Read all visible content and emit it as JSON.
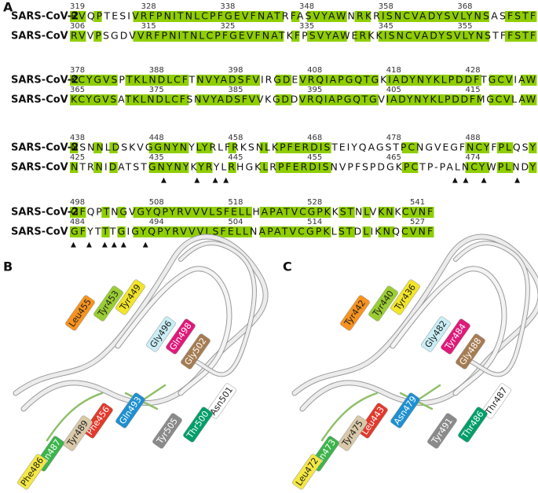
{
  "panels": {
    "a": "A",
    "b": "B",
    "c": "C"
  },
  "alignment": {
    "name1": "SARS-CoV-2",
    "name2": "SARS-CoV",
    "blocks": [
      {
        "numbers1": [
          319,
          328,
          338,
          348,
          358,
          368
        ],
        "seq1": "RVQPTESIVRFPNITNLCPFGEVFNATRFASVYAWNRKRISNCVADYSVLYNSASFSTF",
        "numbers2": [
          306,
          315,
          325,
          335,
          345,
          355
        ],
        "seq2": "RVVPSGDVVRFPNITNLCPFGEVFNATKFPSVYAWERKKISNCVADYSVLYNSTFFSTF"
      },
      {
        "numbers1": [
          378,
          388,
          398,
          408,
          418,
          428
        ],
        "seq1": "KCYGVSPTKLNDLCFTNVYADSFVIRGDEVRQIAPGQTGKIADYNYKLPDDFTGCVIAW",
        "numbers2": [
          365,
          375,
          385,
          395,
          405,
          415
        ],
        "seq2": "KCYGVSATKLNDLCFSNVYADSFVVKGDDVRQIAPGQTGVIADYNYKLPDDFMGCVLAW"
      },
      {
        "numbers1": [
          438,
          448,
          458,
          468,
          478,
          488
        ],
        "seq1": "NSNNLDSKVGGNYNYLYRLFRKSNLKPFERDISTEIYQAGSTPCNGVEGFNCYFPLQSY",
        "numbers2": [
          425,
          435,
          445,
          455,
          465,
          474
        ],
        "seq2": "NTRNIDATSTGNYNYKYRYLRHGKLRPFERDISNVPFSPDGKPCTP-PALNCYWPLNDY",
        "markers": "            ▲   ▲ ▲▲                             ▲▲ ▲   ▲"
      },
      {
        "numbers1": [
          498,
          508,
          518,
          528,
          541
        ],
        "seq1": "GFQPTNGVGYQPYRVVVLSFELLHAPATVCGPKKSTNLVKNKCVNF",
        "numbers2": [
          484,
          494,
          504,
          514,
          527
        ],
        "seq2": "GFYTTTGIGYQPYRVVVLSFELLNAPATVCGPKLSTDLIKNQCVNF",
        "markers": "▲ ▲ ▲▲▲  ▲"
      }
    ],
    "highlight_color": "#8fce00"
  },
  "panel_b": {
    "labels": [
      {
        "text": "Leu455",
        "color": "#f7931e"
      },
      {
        "text": "Tyr453",
        "color": "#9acd32"
      },
      {
        "text": "Tyr449",
        "color": "#f2e527"
      },
      {
        "text": "Gly496",
        "color": "#c9eef6"
      },
      {
        "text": "Gln498",
        "color": "#e0197a"
      },
      {
        "text": "Gly502",
        "color": "#a57c52"
      },
      {
        "text": "Asn501",
        "color": "#ffffff"
      },
      {
        "text": "Thr500",
        "color": "#009e6a"
      },
      {
        "text": "Tyr505",
        "color": "#8a8a8a"
      },
      {
        "text": "Gln493",
        "color": "#1e90d0"
      },
      {
        "text": "Phe456",
        "color": "#e2392b"
      },
      {
        "text": "Tyr489",
        "color": "#d9c9a9"
      },
      {
        "text": "Asn487",
        "color": "#3cb44b"
      },
      {
        "text": "Phe486",
        "color": "#f4e842"
      }
    ]
  },
  "panel_c": {
    "labels": [
      {
        "text": "Tyr442",
        "color": "#f7931e"
      },
      {
        "text": "Tyr440",
        "color": "#9acd32"
      },
      {
        "text": "Tyr436",
        "color": "#f2e527"
      },
      {
        "text": "Gly482",
        "color": "#c9eef6"
      },
      {
        "text": "Tyr484",
        "color": "#e0197a"
      },
      {
        "text": "Gly488",
        "color": "#a57c52"
      },
      {
        "text": "Thr487",
        "color": "#ffffff"
      },
      {
        "text": "Thr486",
        "color": "#009e6a"
      },
      {
        "text": "Tyr491",
        "color": "#8a8a8a"
      },
      {
        "text": "Asn479",
        "color": "#1e90d0"
      },
      {
        "text": "Leu443",
        "color": "#e2392b"
      },
      {
        "text": "Tyr475",
        "color": "#d9c9a9"
      },
      {
        "text": "Asn473",
        "color": "#3cb44b"
      },
      {
        "text": "Leu472",
        "color": "#f4e842"
      }
    ]
  }
}
